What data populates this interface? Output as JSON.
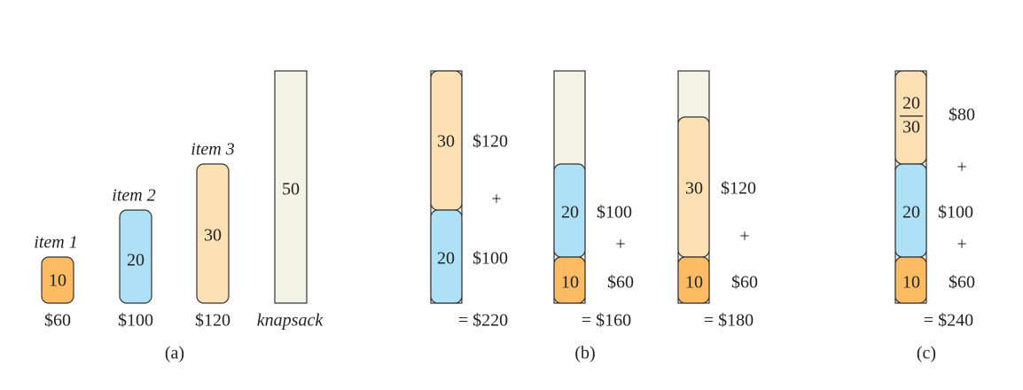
{
  "panel_a": {
    "items": [
      {
        "name": "item 1",
        "weight": "10",
        "price": "$60"
      },
      {
        "name": "item 2",
        "weight": "20",
        "price": "$100"
      },
      {
        "name": "item 3",
        "weight": "30",
        "price": "$120"
      }
    ],
    "knapsack": {
      "capacity": "50",
      "name": "knapsack"
    },
    "caption": "(a)"
  },
  "panel_b": {
    "solutions": [
      {
        "items": [
          {
            "weight": "30",
            "price": "$120"
          },
          {
            "weight": "20",
            "price": "$100"
          }
        ],
        "operators": [
          "+"
        ],
        "total": "= $220"
      },
      {
        "items": [
          {
            "weight": "20",
            "price": "$100"
          },
          {
            "weight": "10",
            "price": "$60"
          }
        ],
        "operators": [
          "+"
        ],
        "total": "= $160"
      },
      {
        "items": [
          {
            "weight": "30",
            "price": "$120"
          },
          {
            "weight": "10",
            "price": "$60"
          }
        ],
        "operators": [
          "+"
        ],
        "total": "= $180"
      }
    ],
    "caption": "(b)"
  },
  "panel_c": {
    "items": [
      {
        "fraction": {
          "numerator": "20",
          "denominator": "30"
        },
        "price": "$80"
      },
      {
        "weight": "20",
        "price": "$100"
      },
      {
        "weight": "10",
        "price": "$60"
      }
    ],
    "operators": [
      "+",
      "+"
    ],
    "total": "= $240",
    "caption": "(c)"
  }
}
